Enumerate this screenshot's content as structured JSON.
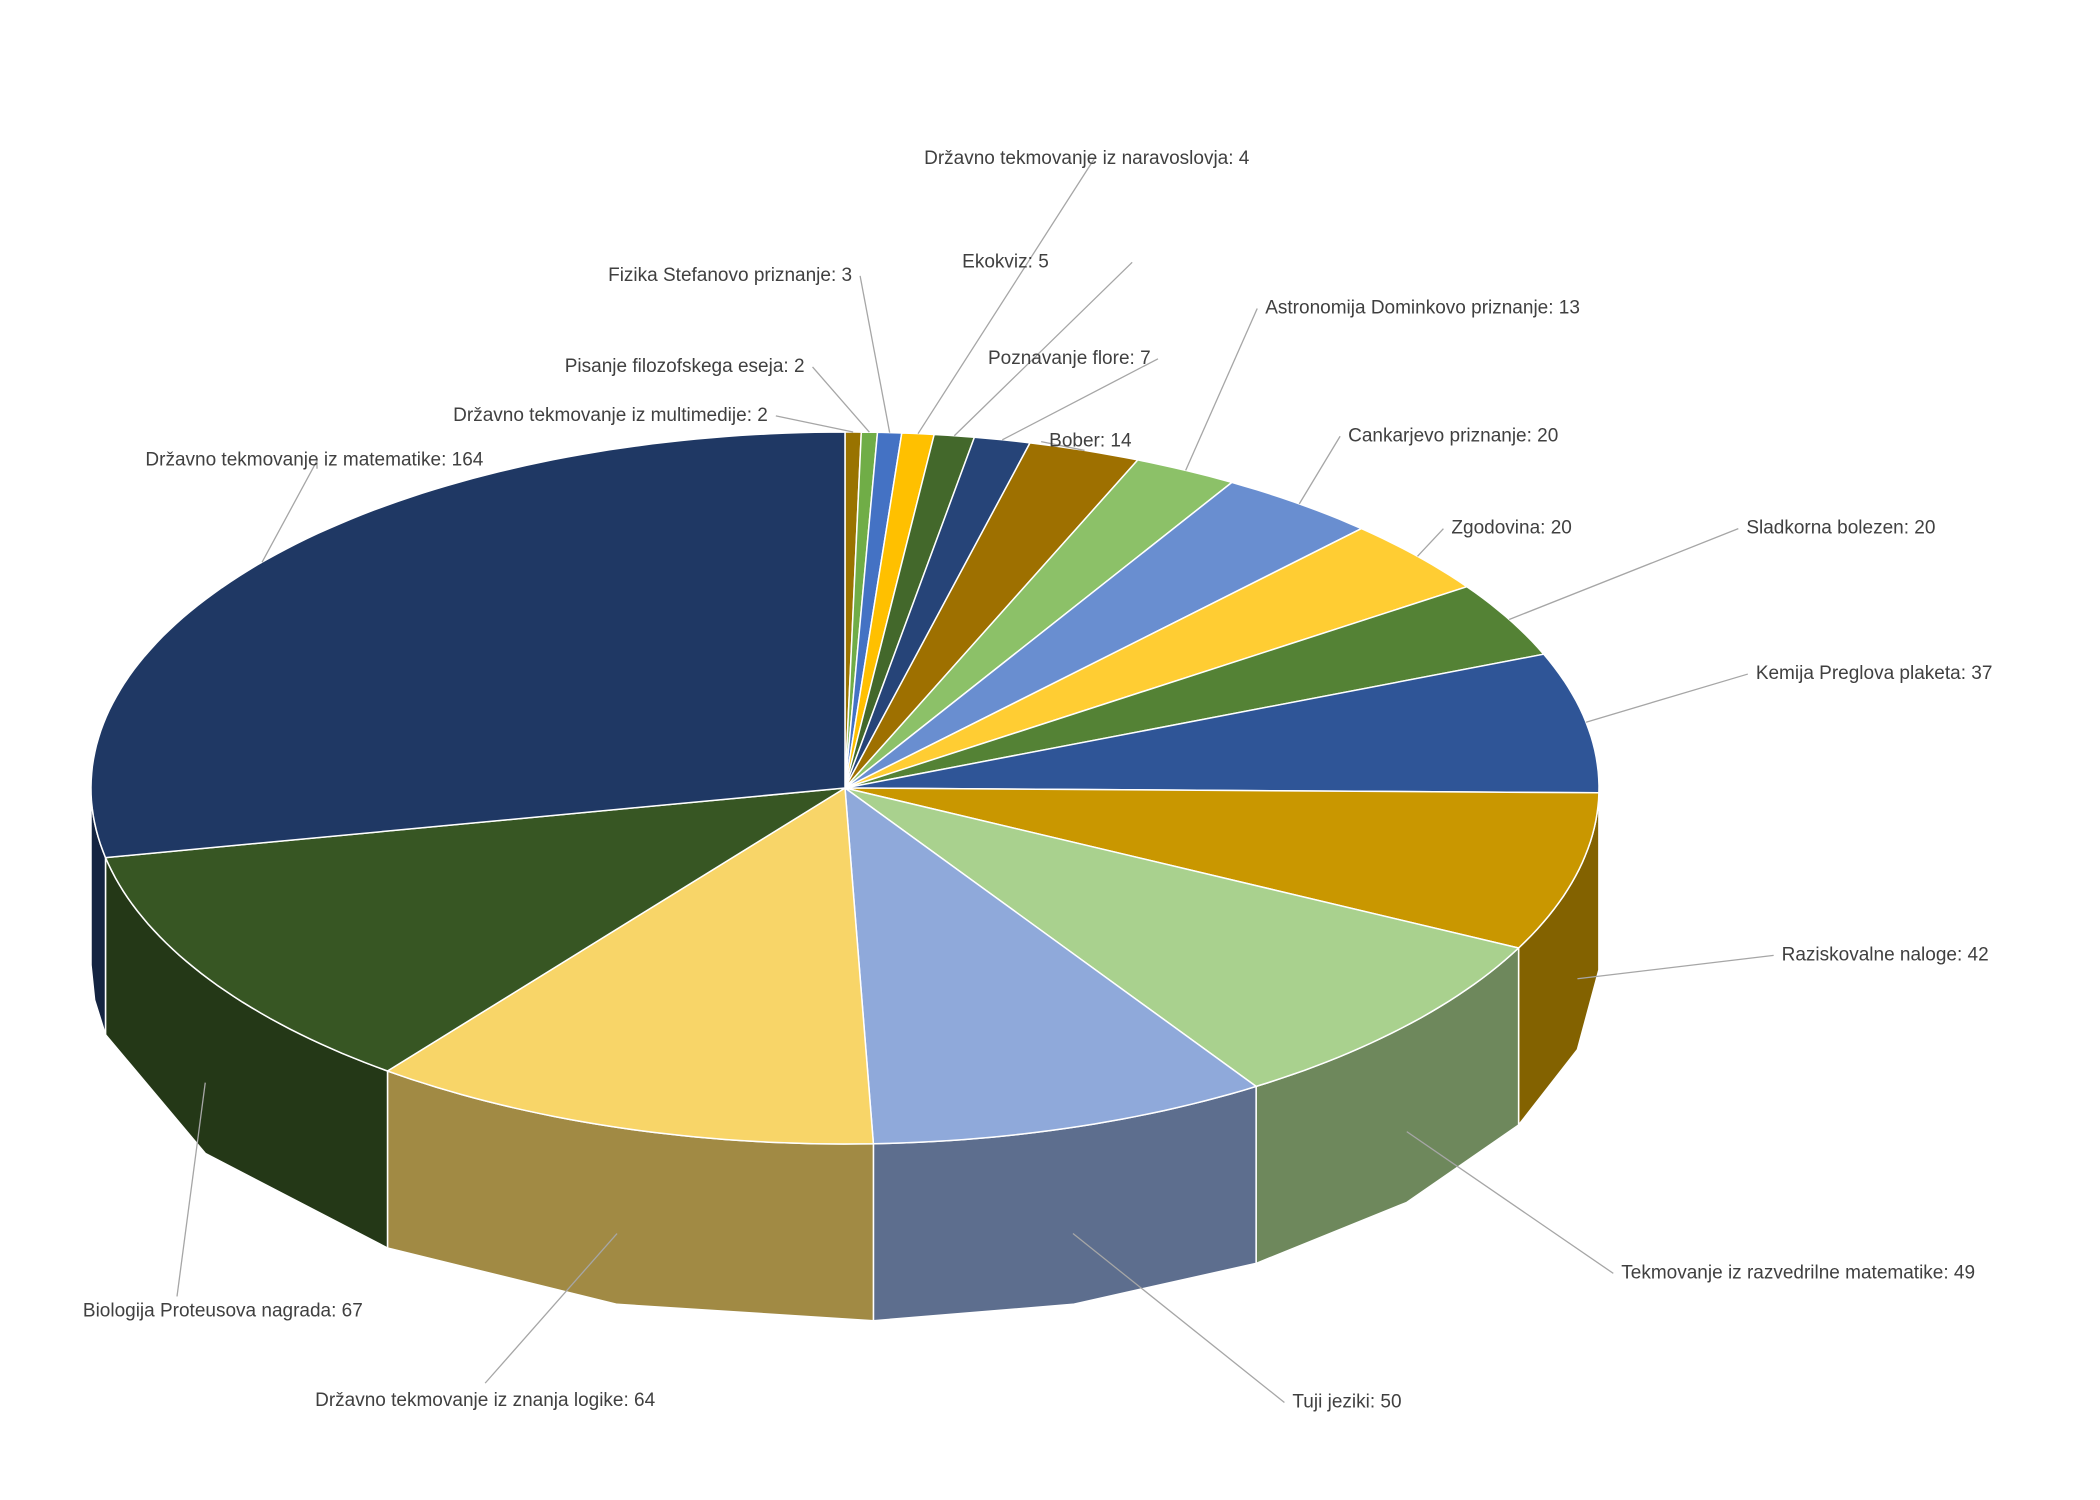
{
  "chart_data": {
    "type": "pie3d",
    "values": [
      2,
      2,
      3,
      4,
      5,
      7,
      14,
      13,
      20,
      20,
      20,
      37,
      42,
      49,
      50,
      64,
      67,
      164
    ],
    "value_labels": [
      "Državno tekmovanje iz multimedije: 2",
      "Pisanje filozofskega eseja: 2",
      "Fizika Stefanovo priznanje: 3",
      "Državno tekmovanje iz naravoslovja: 4",
      "Ekokviz: 5",
      "Poznavanje flore: 7",
      "Bober: 14",
      "Astronomija Dominkovo priznanje: 13",
      "Cankarjevo priznanje: 20",
      "Zgodovina: 20",
      "Sladkorna bolezen: 20",
      "Kemija Preglova plaketa: 37",
      "Raziskovalne naloge: 42",
      "Tekmovanje iz razvedrilne matematike: 49",
      "Tuji jeziki: 50",
      "Državno tekmovanje iz znanja logike: 64",
      "Biologija Proteusova nagrada: 67",
      "Državno tekmovanje iz matematike: 164"
    ],
    "colors": [
      "#997300",
      "#70ad47",
      "#4472c4",
      "#ffc000",
      "#43682b",
      "#264478",
      "#9e7000",
      "#8cc168",
      "#698ed0",
      "#ffcd33",
      "#548235",
      "#2f5597",
      "#c99700",
      "#a9d18e",
      "#8fa9da",
      "#f8d568",
      "#375623",
      "#1f3864"
    ]
  }
}
